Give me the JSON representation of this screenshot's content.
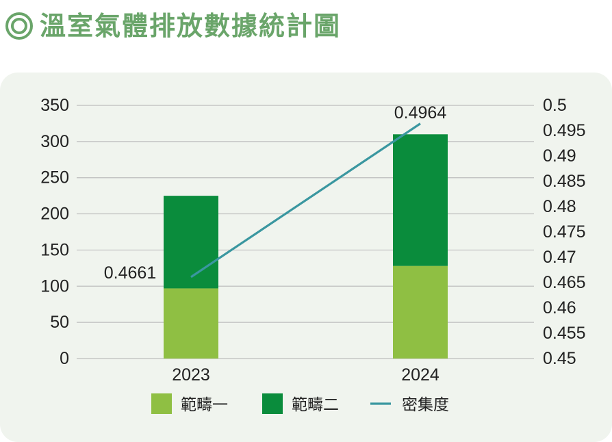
{
  "header": {
    "title": "溫室氣體排放數據統計圖"
  },
  "colors": {
    "title": "#6aa56a",
    "scope1": "#8fbf43",
    "scope2": "#0a8c3c",
    "intensity": "#3a97a0",
    "grid": "#bdbdbd",
    "panel": "#f0f4ee"
  },
  "chart_data": {
    "type": "bar",
    "stacked": true,
    "categories": [
      "2023",
      "2024"
    ],
    "series": [
      {
        "name": "範疇一",
        "type": "bar",
        "axis": "left",
        "values": [
          97,
          128
        ]
      },
      {
        "name": "範疇二",
        "type": "bar",
        "axis": "left",
        "values": [
          128,
          182
        ]
      },
      {
        "name": "密集度",
        "type": "line",
        "axis": "right",
        "values": [
          0.4661,
          0.4964
        ]
      }
    ],
    "data_labels": [
      "0.4661",
      "0.4964"
    ],
    "y_left": {
      "lim": [
        0,
        350
      ],
      "ticks": [
        "0",
        "50",
        "100",
        "150",
        "200",
        "250",
        "300",
        "350"
      ]
    },
    "y_right": {
      "lim": [
        0.45,
        0.5
      ],
      "ticks": [
        "0.45",
        "0.455",
        "0.46",
        "0.465",
        "0.47",
        "0.475",
        "0.48",
        "0.485",
        "0.49",
        "0.495",
        "0.5"
      ]
    },
    "grid": true,
    "legend": "bottom"
  }
}
